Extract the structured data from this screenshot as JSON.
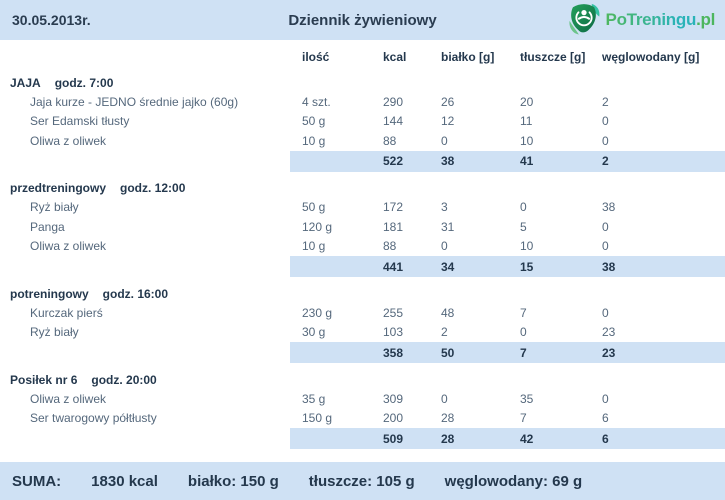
{
  "header": {
    "date": "30.05.2013r.",
    "title": "Dziennik żywieniowy",
    "logo_name": "PoTreningu",
    "logo_tld": ".pl"
  },
  "table": {
    "columns": [
      "ilość",
      "kcal",
      "białko [g]",
      "tłuszcze [g]",
      "węglowodany [g]"
    ],
    "meals": [
      {
        "name": "JAJA",
        "time": "godz. 7:00",
        "items": [
          {
            "name": "Jaja kurze - JEDNO średnie jajko (60g)",
            "amount": "4 szt.",
            "kcal": "290",
            "protein": "26",
            "fat": "20",
            "carbs": "2"
          },
          {
            "name": "Ser Edamski tłusty",
            "amount": "50 g",
            "kcal": "144",
            "protein": "12",
            "fat": "11",
            "carbs": "0"
          },
          {
            "name": "Oliwa z oliwek",
            "amount": "10 g",
            "kcal": "88",
            "protein": "0",
            "fat": "10",
            "carbs": "0"
          }
        ],
        "subtotal": {
          "kcal": "522",
          "protein": "38",
          "fat": "41",
          "carbs": "2"
        }
      },
      {
        "name": "przedtreningowy",
        "time": "godz. 12:00",
        "items": [
          {
            "name": "Ryż biały",
            "amount": "50 g",
            "kcal": "172",
            "protein": "3",
            "fat": "0",
            "carbs": "38"
          },
          {
            "name": "Panga",
            "amount": "120 g",
            "kcal": "181",
            "protein": "31",
            "fat": "5",
            "carbs": "0"
          },
          {
            "name": "Oliwa z oliwek",
            "amount": "10 g",
            "kcal": "88",
            "protein": "0",
            "fat": "10",
            "carbs": "0"
          }
        ],
        "subtotal": {
          "kcal": "441",
          "protein": "34",
          "fat": "15",
          "carbs": "38"
        }
      },
      {
        "name": "potreningowy",
        "time": "godz. 16:00",
        "items": [
          {
            "name": "Kurczak pierś",
            "amount": "230 g",
            "kcal": "255",
            "protein": "48",
            "fat": "7",
            "carbs": "0"
          },
          {
            "name": "Ryż biały",
            "amount": "30 g",
            "kcal": "103",
            "protein": "2",
            "fat": "0",
            "carbs": "23"
          }
        ],
        "subtotal": {
          "kcal": "358",
          "protein": "50",
          "fat": "7",
          "carbs": "23"
        }
      },
      {
        "name": "Posiłek nr 6",
        "time": "godz. 20:00",
        "items": [
          {
            "name": "Oliwa z oliwek",
            "amount": "35 g",
            "kcal": "309",
            "protein": "0",
            "fat": "35",
            "carbs": "0"
          },
          {
            "name": "Ser twarogowy półtłusty",
            "amount": "150 g",
            "kcal": "200",
            "protein": "28",
            "fat": "7",
            "carbs": "6"
          }
        ],
        "subtotal": {
          "kcal": "509",
          "protein": "28",
          "fat": "42",
          "carbs": "6"
        }
      }
    ]
  },
  "footer": {
    "label": "SUMA:",
    "kcal": "1830 kcal",
    "protein": "białko: 150 g",
    "fat": "tłuszcze: 105 g",
    "carbs": "węglowodany: 69 g"
  },
  "colors": {
    "band_blue": "#cfe1f4",
    "navy_text": "#24384d",
    "item_text": "#55687c",
    "logo_green": "#4cb65e",
    "logo_teal": "#2ab3b8",
    "logo_shield_dark": "#15804d"
  }
}
